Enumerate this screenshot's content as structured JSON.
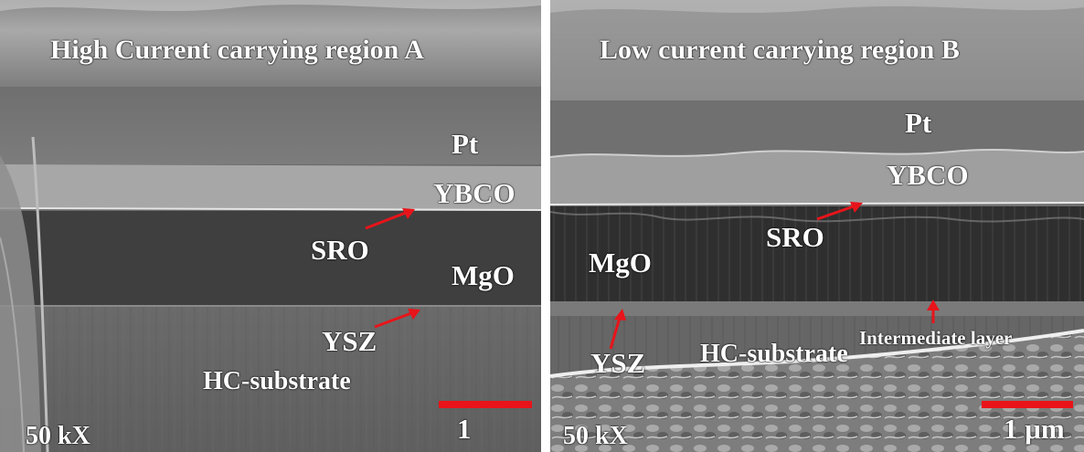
{
  "panel_a": {
    "title": "High Current carrying region A",
    "labels": {
      "pt": "Pt",
      "ybco": "YBCO",
      "sro": "SRO",
      "mgo": "MgO",
      "ysz": "YSZ",
      "substrate": "HC-substrate"
    },
    "magnification": "50 kX",
    "scale_bar_label": "1"
  },
  "panel_b": {
    "title": "Low current carrying region B",
    "labels": {
      "pt": "Pt",
      "ybco": "YBCO",
      "sro": "SRO",
      "mgo": "MgO",
      "ysz": "YSZ",
      "substrate": "HC-substrate",
      "intermediate": "Intermediate layer"
    },
    "magnification": "50 kX",
    "scale_bar_label": "1 μm"
  },
  "colors": {
    "arrow": "#e8141a",
    "scale_bar": "#e8141a",
    "label": "#ffffff"
  }
}
